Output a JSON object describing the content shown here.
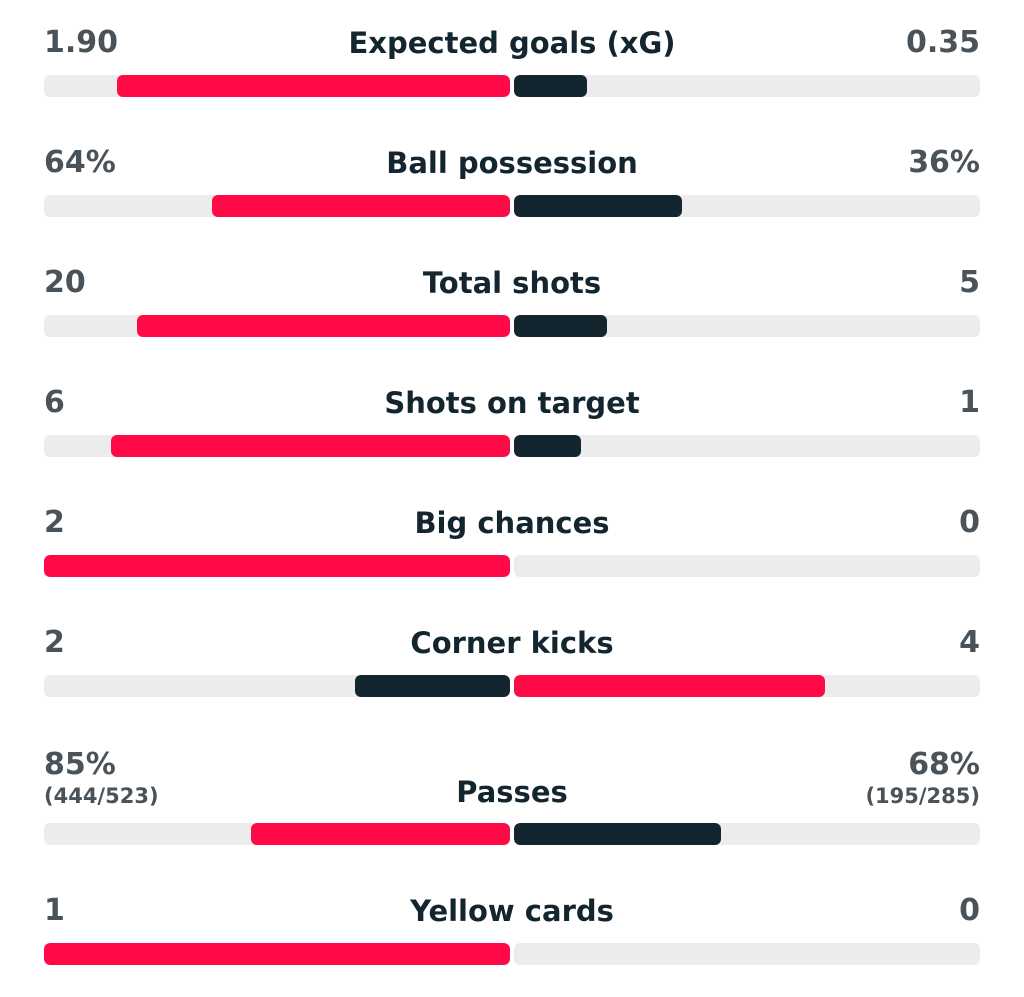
{
  "stats": [
    {
      "label": "Expected goals (xG)",
      "home": "1.90",
      "away": "0.35",
      "home_share": 0.844,
      "away_share": 0.156,
      "home_wins": true
    },
    {
      "label": "Ball possession",
      "home": "64%",
      "away": "36%",
      "home_share": 0.64,
      "away_share": 0.36,
      "home_wins": true
    },
    {
      "label": "Total shots",
      "home": "20",
      "away": "5",
      "home_share": 0.8,
      "away_share": 0.2,
      "home_wins": true
    },
    {
      "label": "Shots on target",
      "home": "6",
      "away": "1",
      "home_share": 0.857,
      "away_share": 0.143,
      "home_wins": true
    },
    {
      "label": "Big chances",
      "home": "2",
      "away": "0",
      "home_share": 1.0,
      "away_share": 0.0,
      "home_wins": true
    },
    {
      "label": "Corner kicks",
      "home": "2",
      "away": "4",
      "home_share": 0.333,
      "away_share": 0.667,
      "home_wins": false
    },
    {
      "label": "Passes",
      "home": "85%",
      "away": "68%",
      "home_sub": "(444/523)",
      "away_sub": "(195/285)",
      "home_share": 0.556,
      "away_share": 0.444,
      "home_wins": true
    },
    {
      "label": "Yellow cards",
      "home": "1",
      "away": "0",
      "home_share": 1.0,
      "away_share": 0.0,
      "home_wins": true
    }
  ],
  "colors": {
    "leader": "#ff0a46",
    "trailer": "#13262f",
    "track": "#ececec"
  }
}
